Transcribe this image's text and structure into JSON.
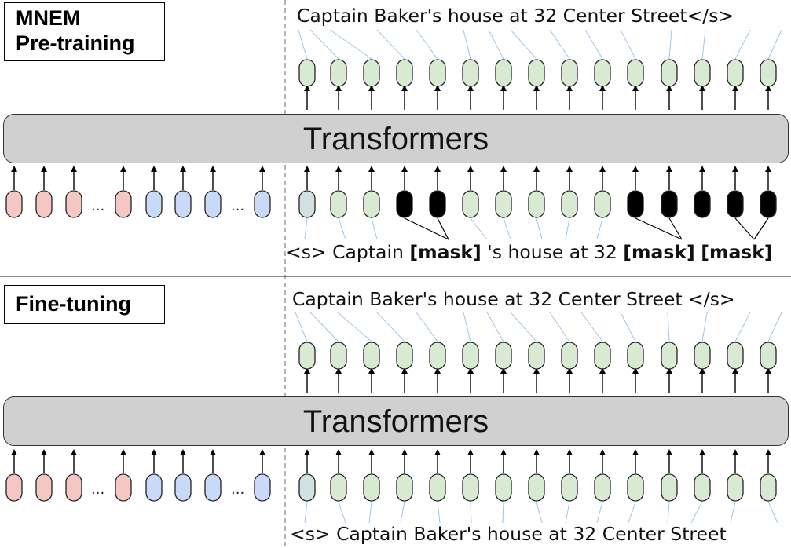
{
  "pretraining": {
    "label_line1": "MNEM",
    "label_line2": "Pre-training",
    "transformer_label": "Transformers",
    "output_text": "Captain Baker's house at 32 Center Street</s>",
    "input_tokens": [
      "<s>",
      "Captain",
      "[mask]",
      "'s house at 32",
      "[mask]",
      "[mask]"
    ],
    "masked_token": "[mask]"
  },
  "finetuning": {
    "label": "Fine-tuning",
    "transformer_label": "Transformers",
    "output_text": "Captain Baker's house at 32 Center Street </s>",
    "input_text": "<s> Captain Baker's house at 32 Center Street"
  },
  "ellipsis": "...",
  "colors": {
    "entity_node": "#f4c7c3",
    "relation_node": "#c9daf8",
    "start_node": "#d0e0e3",
    "text_node": "#d9ead3",
    "mask_node": "#000000",
    "transformer_fill": "#d0d0d0",
    "connector": "#9fc5e8",
    "divider": "#999999"
  },
  "left_nodes": [
    "entity",
    "entity",
    "entity",
    "entity",
    "relation",
    "relation",
    "relation",
    "relation"
  ],
  "right_input_pretraining": [
    "start",
    "text",
    "text",
    "mask",
    "mask",
    "text",
    "text",
    "text",
    "text",
    "text",
    "mask",
    "mask",
    "mask",
    "mask"
  ],
  "right_input_finetuning": [
    "start",
    "text",
    "text",
    "text",
    "text",
    "text",
    "text",
    "text",
    "text",
    "text",
    "text",
    "text",
    "text",
    "text"
  ],
  "right_output_count": 14
}
